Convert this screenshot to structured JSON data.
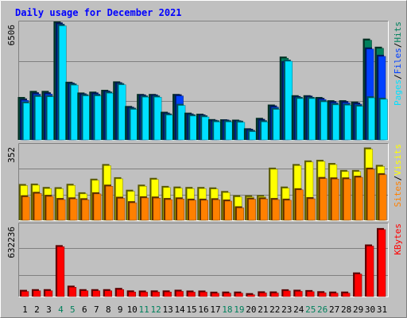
{
  "chart_data": {
    "type": "bar",
    "title": "Daily usage for December 2021",
    "categories": [
      "1",
      "2",
      "3",
      "4",
      "5",
      "6",
      "7",
      "8",
      "9",
      "10",
      "11",
      "12",
      "13",
      "14",
      "15",
      "16",
      "17",
      "18",
      "19",
      "20",
      "21",
      "22",
      "23",
      "24",
      "25",
      "26",
      "27",
      "28",
      "29",
      "30",
      "31"
    ],
    "weekend_days": [
      "4",
      "5",
      "11",
      "12",
      "18",
      "19",
      "25",
      "26"
    ],
    "colors": {
      "background": "#c0c0c0",
      "title": "#0000ff",
      "hits": "#00805c",
      "files": "#0040ff",
      "pages": "#00e0ff",
      "visits": "#ffff00",
      "sites": "#ff8000",
      "kbytes": "#ff0000",
      "weekday_label": "#000000",
      "weekend_label": "#00805c"
    },
    "panels": [
      {
        "name": "traffic",
        "max_label": "6506",
        "ylim": [
          0,
          6506
        ],
        "legend": [
          {
            "label": "Pages",
            "color": "#00e0ff"
          },
          {
            "label": "Files",
            "color": "#0040ff"
          },
          {
            "label": "Hits",
            "color": "#00805c"
          }
        ],
        "separator": " / ",
        "series": [
          {
            "name": "Hits",
            "values": [
              2300,
              2640,
              2640,
              6550,
              3150,
              2550,
              2600,
              2700,
              3170,
              1800,
              2470,
              2470,
              1480,
              2470,
              1430,
              1370,
              1070,
              1060,
              1040,
              560,
              1140,
              1880,
              4550,
              2400,
              2400,
              2300,
              2120,
              2120,
              2040,
              5550,
              5100
            ]
          },
          {
            "name": "Files",
            "values": [
              2200,
              2550,
              2550,
              6450,
              3100,
              2500,
              2550,
              2650,
              3120,
              1750,
              2440,
              2440,
              1430,
              2450,
              1380,
              1330,
              1030,
              1040,
              1000,
              530,
              1080,
              1830,
              4300,
              2350,
              2370,
              2250,
              2070,
              2070,
              1990,
              5060,
              4650
            ]
          },
          {
            "name": "Pages",
            "values": [
              2050,
              2410,
              2400,
              6350,
              3050,
              2450,
              2450,
              2600,
              3070,
              1700,
              2380,
              2380,
              1380,
              1920,
              1330,
              1280,
              1000,
              1000,
              980,
              460,
              1000,
              1700,
              4380,
              2300,
              2300,
              2120,
              1950,
              1930,
              1870,
              2340,
              2260
            ]
          }
        ]
      },
      {
        "name": "visitors",
        "max_label": "352",
        "ylim": [
          0,
          352
        ],
        "legend": [
          {
            "label": "Sites",
            "color": "#ff8000"
          },
          {
            "label": "Visits",
            "color": "#ffff00"
          }
        ],
        "separator": " / ",
        "series": [
          {
            "name": "Visits",
            "values": [
              163,
              165,
              149,
              148,
              164,
              124,
              188,
              257,
              195,
              136,
              160,
              192,
              154,
              151,
              149,
              149,
              147,
              130,
              110,
              110,
              111,
              240,
              151,
              257,
              274,
              277,
              262,
              229,
              229,
              335,
              253
            ]
          },
          {
            "name": "Sites",
            "values": [
              110,
              126,
              112,
              97,
              100,
              96,
              124,
              160,
              103,
              82,
              105,
              104,
              97,
              100,
              94,
              94,
              96,
              90,
              58,
              99,
              100,
              97,
              94,
              143,
              101,
              196,
              194,
              194,
              202,
              240,
              214
            ]
          }
        ]
      },
      {
        "name": "bandwidth",
        "max_label": "632236",
        "ylim": [
          0,
          632236
        ],
        "legend": [
          {
            "label": "KBytes",
            "color": "#ff0000"
          }
        ],
        "separator": "",
        "series": [
          {
            "name": "KBytes",
            "values": [
              45000,
              51000,
              51000,
              440000,
              82000,
              51000,
              51000,
              51000,
              62000,
              40000,
              39000,
              40000,
              40000,
              46000,
              39000,
              39000,
              29000,
              30000,
              30000,
              16000,
              32000,
              31000,
              50000,
              46000,
              43000,
              33000,
              30000,
              30000,
              199000,
              446000,
              591000
            ]
          }
        ]
      }
    ]
  }
}
